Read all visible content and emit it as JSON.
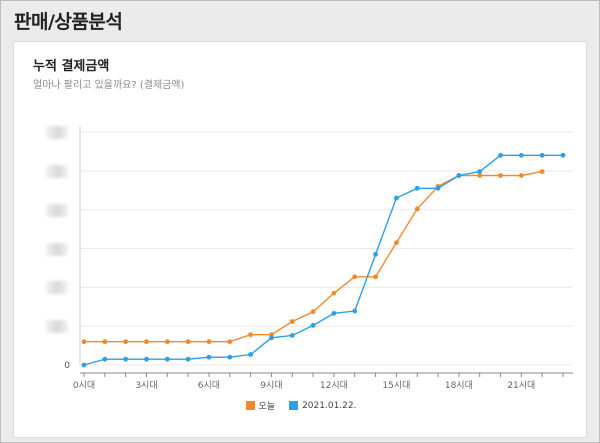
{
  "page": {
    "title": "판매/상품분석"
  },
  "card": {
    "title": "누적 결제금액",
    "subtitle": "얼마나 팔리고 있을까요? (결제금액)"
  },
  "colors": {
    "today": "#f08a2c",
    "compare": "#2ba0e8",
    "grid": "#e9e9e9",
    "axis": "#888888"
  },
  "chart_data": {
    "type": "line",
    "x": [
      "0시대",
      "1시대",
      "2시대",
      "3시대",
      "4시대",
      "5시대",
      "6시대",
      "7시대",
      "8시대",
      "9시대",
      "10시대",
      "11시대",
      "12시대",
      "13시대",
      "14시대",
      "15시대",
      "16시대",
      "17시대",
      "18시대",
      "19시대",
      "20시대",
      "21시대",
      "22시대",
      "23시대"
    ],
    "tick_labels": [
      "0시대",
      "3시대",
      "6시대",
      "9시대",
      "12시대",
      "15시대",
      "18시대",
      "21시대"
    ],
    "tick_indices": [
      0,
      3,
      6,
      9,
      12,
      15,
      18,
      21
    ],
    "y_tick_labels": [
      "0"
    ],
    "y_ticks_count": 7,
    "ylim": [
      0,
      6
    ],
    "grid": "horizontal",
    "legend_position": "bottom",
    "series": [
      {
        "name": "오늘",
        "color_key": "today",
        "values": [
          0.6,
          0.6,
          0.6,
          0.6,
          0.6,
          0.6,
          0.6,
          0.6,
          0.78,
          0.78,
          1.12,
          1.37,
          1.85,
          2.27,
          2.27,
          3.15,
          4.02,
          4.6,
          4.88,
          4.88,
          4.88,
          4.88,
          4.98,
          null
        ]
      },
      {
        "name": "2021.01.22.",
        "color_key": "compare",
        "values": [
          0.0,
          0.15,
          0.15,
          0.15,
          0.15,
          0.15,
          0.2,
          0.2,
          0.27,
          0.7,
          0.76,
          1.02,
          1.33,
          1.39,
          2.85,
          4.3,
          4.55,
          4.55,
          4.88,
          4.98,
          5.4,
          5.4,
          5.4,
          5.4
        ]
      }
    ]
  }
}
